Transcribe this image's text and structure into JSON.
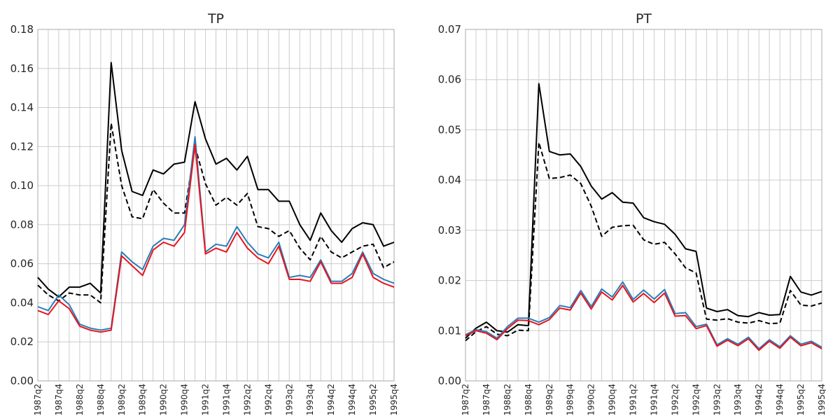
{
  "colors": {
    "black": "#000000",
    "blue": "#2a7db8",
    "red": "#e8141c",
    "grid": "#cccccc",
    "axis": "#aaaaaa",
    "background": "#ffffff"
  },
  "chart_data": [
    {
      "type": "line",
      "title": "TP",
      "xlabel": "",
      "ylabel": "",
      "grid": true,
      "ylim": [
        0.0,
        0.18
      ],
      "yticks": [
        "0.00",
        "0.02",
        "0.04",
        "0.06",
        "0.08",
        "0.10",
        "0.12",
        "0.14",
        "0.16",
        "0.18"
      ],
      "x": [
        "1987q2",
        "1987q3",
        "1987q4",
        "1988q1",
        "1988q2",
        "1988q3",
        "1988q4",
        "1989q1",
        "1989q2",
        "1989q3",
        "1989q4",
        "1990q1",
        "1990q2",
        "1990q3",
        "1990q4",
        "1991q1",
        "1991q2",
        "1991q3",
        "1991q4",
        "1992q1",
        "1992q2",
        "1992q3",
        "1992q4",
        "1993q1",
        "1993q2",
        "1993q3",
        "1993q4",
        "1994q1",
        "1994q2",
        "1994q3",
        "1994q4",
        "1995q1",
        "1995q2",
        "1995q3",
        "1995q4"
      ],
      "xticks": [
        "1987q2",
        "1987q4",
        "1988q2",
        "1988q4",
        "1989q2",
        "1989q4",
        "1990q2",
        "1990q4",
        "1991q2",
        "1991q4",
        "1992q2",
        "1992q4",
        "1993q2",
        "1993q4",
        "1994q2",
        "1994q4",
        "1995q2",
        "1995q4"
      ],
      "series": [
        {
          "style": "solid",
          "color": "#000000",
          "values": [
            0.053,
            0.047,
            0.043,
            0.048,
            0.048,
            0.05,
            0.045,
            0.163,
            0.118,
            0.097,
            0.095,
            0.108,
            0.106,
            0.111,
            0.112,
            0.143,
            0.124,
            0.111,
            0.114,
            0.108,
            0.115,
            0.098,
            0.098,
            0.092,
            0.092,
            0.08,
            0.072,
            0.086,
            0.077,
            0.071,
            0.078,
            0.081,
            0.08,
            0.069,
            0.071
          ]
        },
        {
          "style": "dashed",
          "color": "#000000",
          "values": [
            0.049,
            0.044,
            0.041,
            0.045,
            0.044,
            0.044,
            0.04,
            0.132,
            0.1,
            0.084,
            0.083,
            0.098,
            0.091,
            0.086,
            0.086,
            0.12,
            0.101,
            0.09,
            0.094,
            0.09,
            0.096,
            0.079,
            0.078,
            0.074,
            0.077,
            0.068,
            0.062,
            0.074,
            0.066,
            0.063,
            0.066,
            0.069,
            0.07,
            0.058,
            0.061
          ]
        },
        {
          "style": "solid",
          "color": "#2a7db8",
          "values": [
            0.038,
            0.036,
            0.044,
            0.039,
            0.029,
            0.027,
            0.026,
            0.027,
            0.066,
            0.061,
            0.057,
            0.069,
            0.073,
            0.072,
            0.08,
            0.125,
            0.066,
            0.07,
            0.069,
            0.079,
            0.071,
            0.065,
            0.063,
            0.071,
            0.053,
            0.054,
            0.053,
            0.062,
            0.051,
            0.051,
            0.055,
            0.066,
            0.055,
            0.052,
            0.05
          ]
        },
        {
          "style": "solid",
          "color": "#e8141c",
          "values": [
            0.036,
            0.034,
            0.041,
            0.037,
            0.028,
            0.026,
            0.025,
            0.026,
            0.064,
            0.059,
            0.054,
            0.067,
            0.071,
            0.069,
            0.076,
            0.121,
            0.065,
            0.068,
            0.066,
            0.076,
            0.068,
            0.063,
            0.06,
            0.069,
            0.052,
            0.052,
            0.051,
            0.061,
            0.05,
            0.05,
            0.053,
            0.065,
            0.053,
            0.05,
            0.048
          ]
        }
      ]
    },
    {
      "type": "line",
      "title": "PT",
      "xlabel": "",
      "ylabel": "",
      "grid": true,
      "ylim": [
        0.0,
        0.07
      ],
      "yticks": [
        "0.00",
        "0.01",
        "0.02",
        "0.03",
        "0.04",
        "0.05",
        "0.06",
        "0.07"
      ],
      "x": [
        "1987q2",
        "1987q3",
        "1987q4",
        "1988q1",
        "1988q2",
        "1988q3",
        "1988q4",
        "1989q1",
        "1989q2",
        "1989q3",
        "1989q4",
        "1990q1",
        "1990q2",
        "1990q3",
        "1990q4",
        "1991q1",
        "1991q2",
        "1991q3",
        "1991q4",
        "1992q1",
        "1992q2",
        "1992q3",
        "1992q4",
        "1993q1",
        "1993q2",
        "1993q3",
        "1993q4",
        "1994q1",
        "1994q2",
        "1994q3",
        "1994q4",
        "1995q1",
        "1995q2",
        "1995q3",
        "1995q4"
      ],
      "xticks": [
        "1987q2",
        "1987q4",
        "1988q2",
        "1988q4",
        "1989q2",
        "1989q4",
        "1990q2",
        "1990q4",
        "1991q2",
        "1991q4",
        "1992q2",
        "1992q4",
        "1993q2",
        "1993q4",
        "1994q2",
        "1994q4",
        "1995q2",
        "1995q4"
      ],
      "series": [
        {
          "style": "solid",
          "color": "#000000",
          "values": [
            0.0085,
            0.0105,
            0.0117,
            0.01,
            0.0097,
            0.0112,
            0.011,
            0.0592,
            0.0457,
            0.045,
            0.0452,
            0.0427,
            0.0388,
            0.0362,
            0.0375,
            0.0356,
            0.0354,
            0.0325,
            0.0317,
            0.0312,
            0.0292,
            0.0263,
            0.0258,
            0.0145,
            0.0138,
            0.0142,
            0.013,
            0.0128,
            0.0136,
            0.0131,
            0.0132,
            0.0208,
            0.0177,
            0.0171,
            0.0178
          ]
        },
        {
          "style": "dashed",
          "color": "#000000",
          "values": [
            0.008,
            0.0098,
            0.0108,
            0.0093,
            0.009,
            0.0101,
            0.01,
            0.0475,
            0.0403,
            0.0405,
            0.041,
            0.0393,
            0.0348,
            0.0288,
            0.0306,
            0.0309,
            0.031,
            0.0281,
            0.0272,
            0.0276,
            0.0253,
            0.0225,
            0.0215,
            0.0123,
            0.0121,
            0.0124,
            0.0117,
            0.0115,
            0.012,
            0.0114,
            0.0115,
            0.018,
            0.0151,
            0.0149,
            0.0155
          ]
        },
        {
          "style": "solid",
          "color": "#2a7db8",
          "values": [
            0.0092,
            0.0102,
            0.0098,
            0.0085,
            0.0108,
            0.0125,
            0.0125,
            0.0117,
            0.0126,
            0.015,
            0.0146,
            0.018,
            0.0148,
            0.0183,
            0.0167,
            0.0197,
            0.0162,
            0.0181,
            0.0163,
            0.0182,
            0.0134,
            0.0136,
            0.0108,
            0.0113,
            0.0072,
            0.0084,
            0.0073,
            0.0087,
            0.0064,
            0.0082,
            0.0068,
            0.009,
            0.0073,
            0.0079,
            0.0067
          ]
        },
        {
          "style": "solid",
          "color": "#e8141c",
          "values": [
            0.009,
            0.01,
            0.0095,
            0.0082,
            0.0104,
            0.0121,
            0.012,
            0.0112,
            0.0122,
            0.0145,
            0.0141,
            0.0175,
            0.0143,
            0.0177,
            0.0161,
            0.019,
            0.0157,
            0.0174,
            0.0156,
            0.0175,
            0.0129,
            0.013,
            0.0104,
            0.011,
            0.0069,
            0.0081,
            0.007,
            0.0084,
            0.0061,
            0.0079,
            0.0065,
            0.0087,
            0.007,
            0.0076,
            0.0064
          ]
        }
      ]
    }
  ]
}
